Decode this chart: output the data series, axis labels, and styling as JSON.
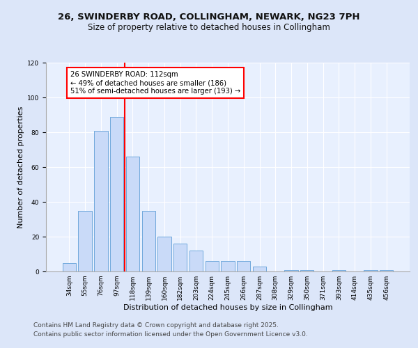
{
  "title1": "26, SWINDERBY ROAD, COLLINGHAM, NEWARK, NG23 7PH",
  "title2": "Size of property relative to detached houses in Collingham",
  "xlabel": "Distribution of detached houses by size in Collingham",
  "ylabel": "Number of detached properties",
  "bar_labels": [
    "34sqm",
    "55sqm",
    "76sqm",
    "97sqm",
    "118sqm",
    "139sqm",
    "160sqm",
    "182sqm",
    "203sqm",
    "224sqm",
    "245sqm",
    "266sqm",
    "287sqm",
    "308sqm",
    "329sqm",
    "350sqm",
    "371sqm",
    "393sqm",
    "414sqm",
    "435sqm",
    "456sqm"
  ],
  "bar_values": [
    5,
    35,
    81,
    89,
    66,
    35,
    20,
    16,
    12,
    6,
    6,
    6,
    3,
    0,
    1,
    1,
    0,
    1,
    0,
    1,
    1
  ],
  "bar_color": "#c9daf8",
  "bar_edge_color": "#6fa8dc",
  "vline_color": "red",
  "vline_pos": 3.5,
  "annotation_text": "26 SWINDERBY ROAD: 112sqm\n← 49% of detached houses are smaller (186)\n51% of semi-detached houses are larger (193) →",
  "annotation_box_color": "white",
  "annotation_box_edge": "red",
  "footer1": "Contains HM Land Registry data © Crown copyright and database right 2025.",
  "footer2": "Contains public sector information licensed under the Open Government Licence v3.0.",
  "ylim": [
    0,
    120
  ],
  "bg_color": "#dce6f9",
  "plot_bg": "#e8f0fe",
  "grid_color": "white",
  "title1_fontsize": 9.5,
  "title2_fontsize": 8.5,
  "xlabel_fontsize": 8,
  "ylabel_fontsize": 8,
  "tick_fontsize": 6.5,
  "footer_fontsize": 6.5,
  "ann_fontsize": 7.2
}
